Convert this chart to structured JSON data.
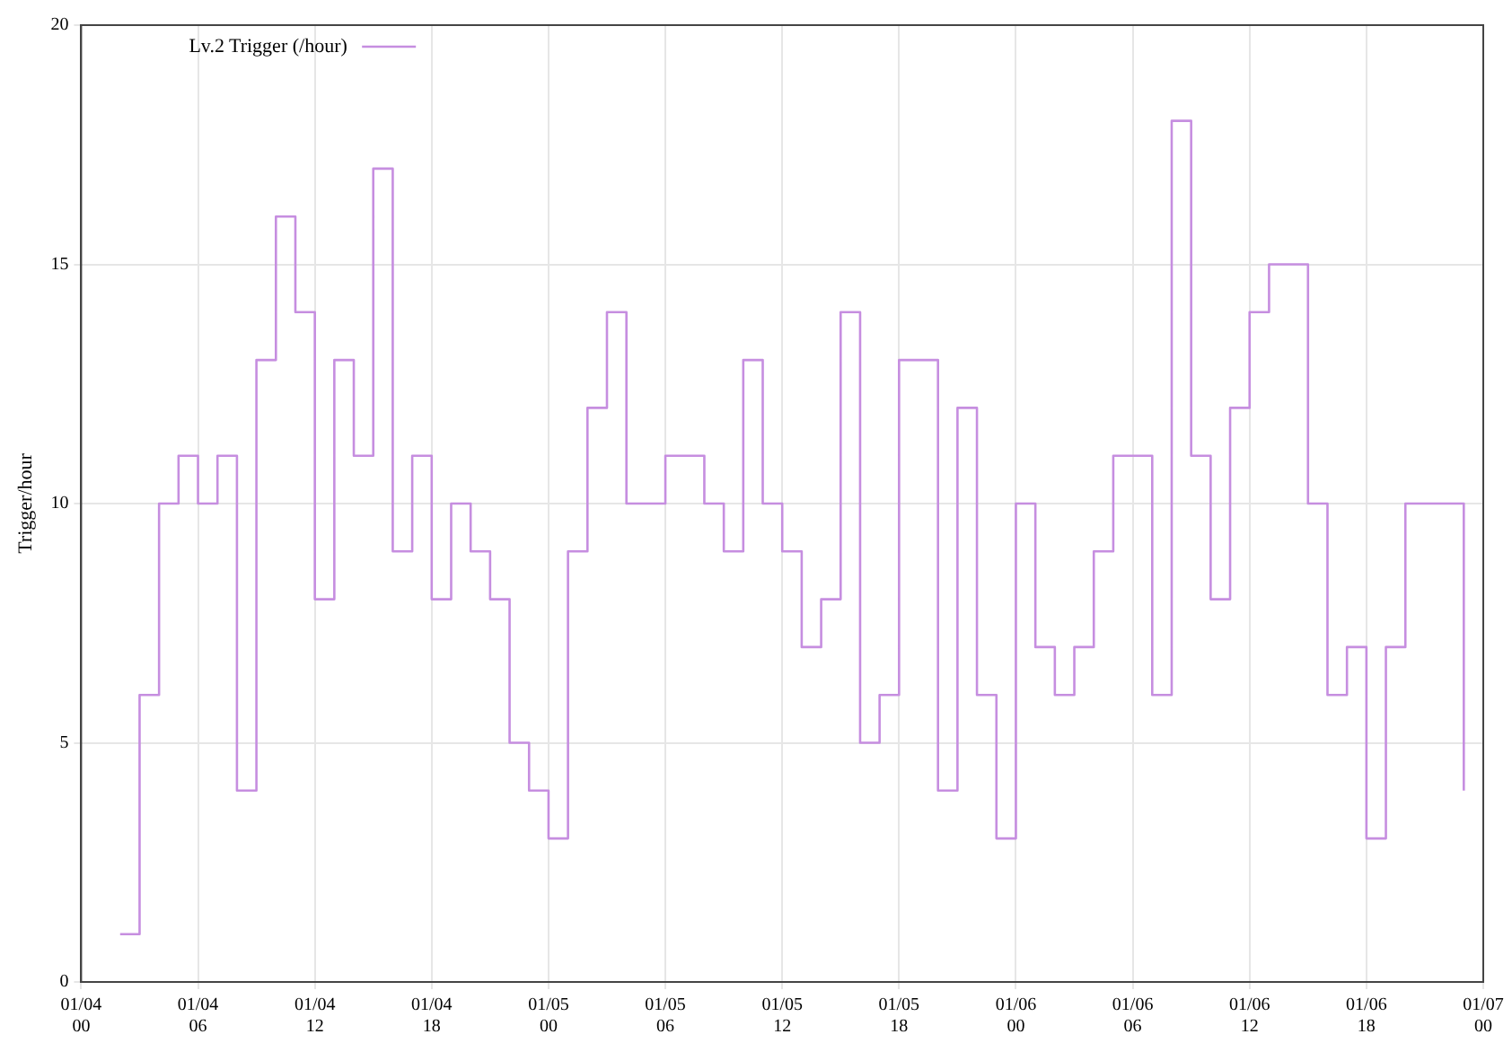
{
  "chart_data": {
    "type": "step",
    "ylabel": "Trigger/hour",
    "legend": "top left",
    "grid": true,
    "xlim": [
      "--01-04T00:00",
      "--01-07T00:00"
    ],
    "xticks": [
      {
        "value": "--01-04T00:00",
        "label": "01/04 00"
      },
      {
        "value": "--01-04T06:00",
        "label": "01/04 06"
      },
      {
        "value": "--01-04T12:00",
        "label": "01/04 12"
      },
      {
        "value": "--01-04T18:00",
        "label": "01/04 18"
      },
      {
        "value": "--01-05T00:00",
        "label": "01/05 00"
      },
      {
        "value": "--01-05T06:00",
        "label": "01/05 06"
      },
      {
        "value": "--01-05T12:00",
        "label": "01/05 12"
      },
      {
        "value": "--01-05T18:00",
        "label": "01/05 18"
      },
      {
        "value": "--01-06T00:00",
        "label": "01/06 00"
      },
      {
        "value": "--01-06T06:00",
        "label": "01/06 06"
      },
      {
        "value": "--01-06T12:00",
        "label": "01/06 12"
      },
      {
        "value": "--01-06T18:00",
        "label": "01/06 18"
      },
      {
        "value": "--01-07T00:00",
        "label": "01/07 00"
      }
    ],
    "ylim": [
      0,
      20
    ],
    "yticks": [
      0,
      5,
      10,
      15,
      20
    ],
    "x": [
      "--01-04T02:00",
      "--01-04T03:00",
      "--01-04T04:00",
      "--01-04T05:00",
      "--01-04T06:00",
      "--01-04T07:00",
      "--01-04T08:00",
      "--01-04T09:00",
      "--01-04T10:00",
      "--01-04T11:00",
      "--01-04T12:00",
      "--01-04T13:00",
      "--01-04T14:00",
      "--01-04T15:00",
      "--01-04T16:00",
      "--01-04T17:00",
      "--01-04T18:00",
      "--01-04T19:00",
      "--01-04T20:00",
      "--01-04T21:00",
      "--01-04T22:00",
      "--01-04T23:00",
      "--01-05T00:00",
      "--01-05T01:00",
      "--01-05T02:00",
      "--01-05T03:00",
      "--01-05T04:00",
      "--01-05T05:00",
      "--01-05T06:00",
      "--01-05T07:00",
      "--01-05T08:00",
      "--01-05T09:00",
      "--01-05T10:00",
      "--01-05T11:00",
      "--01-05T12:00",
      "--01-05T13:00",
      "--01-05T14:00",
      "--01-05T15:00",
      "--01-05T16:00",
      "--01-05T17:00",
      "--01-05T18:00",
      "--01-05T19:00",
      "--01-05T20:00",
      "--01-05T21:00",
      "--01-05T22:00",
      "--01-05T23:00",
      "--01-06T00:00",
      "--01-06T01:00",
      "--01-06T02:00",
      "--01-06T03:00",
      "--01-06T04:00",
      "--01-06T05:00",
      "--01-06T06:00",
      "--01-06T07:00",
      "--01-06T08:00",
      "--01-06T09:00",
      "--01-06T10:00",
      "--01-06T11:00",
      "--01-06T12:00",
      "--01-06T13:00",
      "--01-06T14:00",
      "--01-06T15:00",
      "--01-06T16:00",
      "--01-06T17:00",
      "--01-06T18:00",
      "--01-06T19:00",
      "--01-06T20:00",
      "--01-06T21:00",
      "--01-06T22:00",
      "--01-06T23:00"
    ],
    "series": [
      {
        "name": "Lv.2 Trigger (/hour)",
        "color": "#c68ee0",
        "values": [
          1,
          6,
          10,
          11,
          10,
          11,
          4,
          13,
          16,
          14,
          8,
          13,
          11,
          17,
          9,
          11,
          8,
          10,
          9,
          8,
          5,
          4,
          3,
          9,
          12,
          14,
          10,
          10,
          11,
          11,
          10,
          9,
          13,
          10,
          9,
          7,
          8,
          14,
          5,
          6,
          13,
          13,
          4,
          12,
          6,
          3,
          10,
          7,
          6,
          7,
          9,
          11,
          11,
          6,
          18,
          11,
          8,
          12,
          14,
          15,
          15,
          10,
          6,
          7,
          3,
          7,
          10,
          10,
          10,
          4
        ]
      }
    ]
  }
}
